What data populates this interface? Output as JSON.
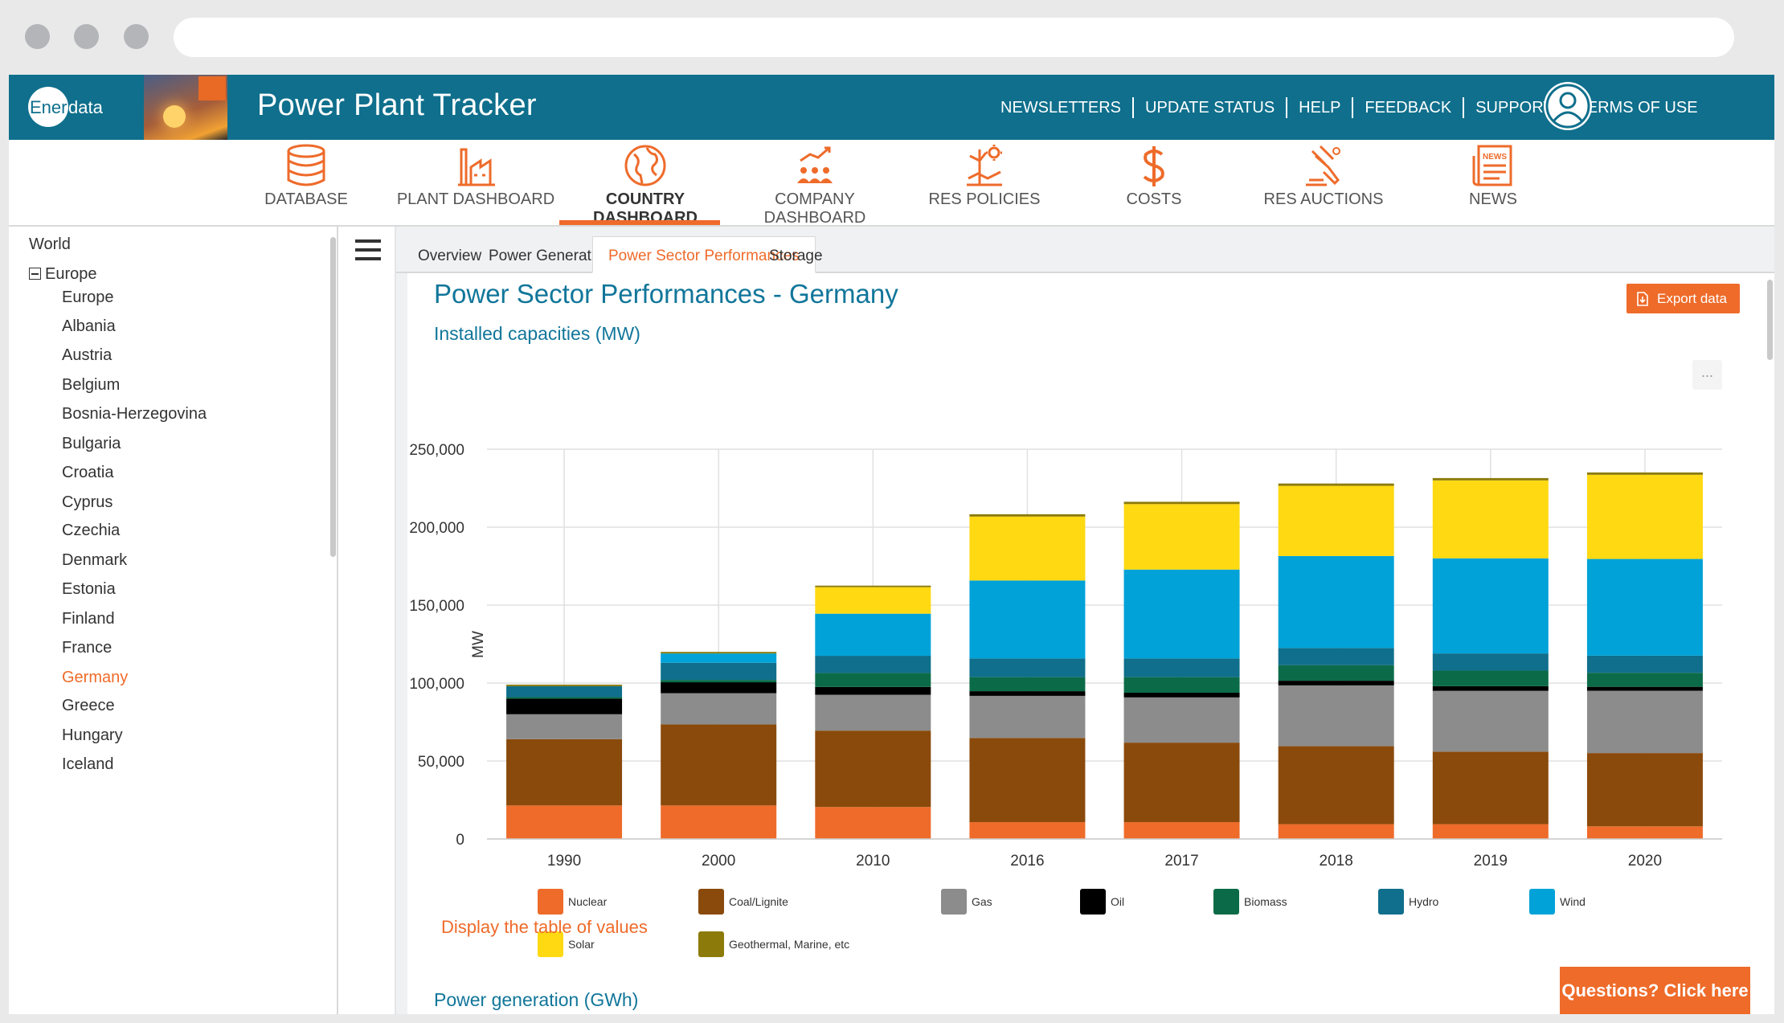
{
  "header": {
    "logo_part1": "Ener",
    "logo_part2": "data",
    "app_title": "Power Plant Tracker",
    "links": [
      "NEWSLETTERS",
      "UPDATE STATUS",
      "HELP",
      "FEEDBACK",
      "SUPPORT",
      "TERMS OF USE"
    ]
  },
  "nav": [
    {
      "label": "DATABASE",
      "icon": "database-icon"
    },
    {
      "label": "PLANT DASHBOARD",
      "icon": "plant-icon"
    },
    {
      "label": "COUNTRY DASHBOARD",
      "icon": "globe-icon"
    },
    {
      "label": "COMPANY DASHBOARD",
      "icon": "company-icon"
    },
    {
      "label": "RES POLICIES",
      "icon": "res-policies-icon"
    },
    {
      "label": "COSTS",
      "icon": "dollar-icon"
    },
    {
      "label": "RES AUCTIONS",
      "icon": "gavel-icon"
    },
    {
      "label": "NEWS",
      "icon": "news-icon"
    }
  ],
  "sidebar": {
    "world": "World",
    "region": "Europe",
    "countries": [
      "Europe",
      "Albania",
      "Austria",
      "Belgium",
      "Bosnia-Herzegovina",
      "Bulgaria",
      "Croatia",
      "Cyprus",
      "Czechia",
      "Denmark",
      "Estonia",
      "Finland",
      "France",
      "Germany",
      "Greece",
      "Hungary",
      "Iceland"
    ],
    "selected": "Germany"
  },
  "tabs": [
    "Overview",
    "Power Generation",
    "Power Sector Performances",
    "Storage"
  ],
  "active_tab": "Power Sector Performances",
  "content": {
    "title": "Power Sector Performances - Germany",
    "subtitle": "Installed capacities (MW)",
    "export_label": "Export data",
    "menu_dots": "...",
    "display_table": "Display the table of values",
    "generation_title": "Power generation (GWh)",
    "questions": "Questions? Click here"
  },
  "colors": {
    "header_bg": "#0f6f8c",
    "accent": "#ee6b2a",
    "title_blue": "#11769a"
  },
  "chart_data": {
    "type": "bar",
    "stacked": true,
    "title": "Installed capacities (MW)",
    "xlabel": "",
    "ylabel": "MW",
    "ylim": [
      0,
      250000
    ],
    "yticks": [
      0,
      50000,
      100000,
      150000,
      200000,
      250000
    ],
    "ytick_labels": [
      "0",
      "50,000",
      "100,000",
      "150,000",
      "200,000",
      "250,000"
    ],
    "categories": [
      "1990",
      "2000",
      "2010",
      "2016",
      "2017",
      "2018",
      "2019",
      "2020"
    ],
    "series": [
      {
        "name": "Nuclear",
        "color": "#ee6b2a",
        "values": [
          21500,
          21500,
          20500,
          10800,
          10800,
          9500,
          9500,
          8100
        ]
      },
      {
        "name": "Coal/Lignite",
        "color": "#8a4a0b",
        "values": [
          42500,
          52000,
          49000,
          54000,
          51000,
          50000,
          46500,
          47000
        ]
      },
      {
        "name": "Gas",
        "color": "#8c8c8c",
        "values": [
          16000,
          20000,
          23000,
          27000,
          29000,
          39000,
          39000,
          40000
        ]
      },
      {
        "name": "Oil",
        "color": "#000000",
        "values": [
          10000,
          7000,
          5000,
          3000,
          3000,
          3000,
          3000,
          2500
        ]
      },
      {
        "name": "Biomass",
        "color": "#0b6b48",
        "values": [
          1000,
          1500,
          9000,
          9000,
          10000,
          10000,
          10000,
          9000
        ]
      },
      {
        "name": "Hydro",
        "color": "#0f6f8c",
        "values": [
          7000,
          11000,
          11000,
          12000,
          12000,
          11000,
          11000,
          11000
        ]
      },
      {
        "name": "Wind",
        "color": "#00a2d8",
        "values": [
          0,
          6000,
          27000,
          50000,
          57000,
          59000,
          61000,
          62000
        ]
      },
      {
        "name": "Solar",
        "color": "#ffd911",
        "values": [
          0,
          0,
          17000,
          41000,
          42000,
          45000,
          50000,
          54000
        ]
      },
      {
        "name": "Geothermal, Marine, etc",
        "color": "#8c7b0a",
        "values": [
          1000,
          1000,
          1000,
          1500,
          1500,
          1500,
          1500,
          1500
        ]
      }
    ]
  }
}
